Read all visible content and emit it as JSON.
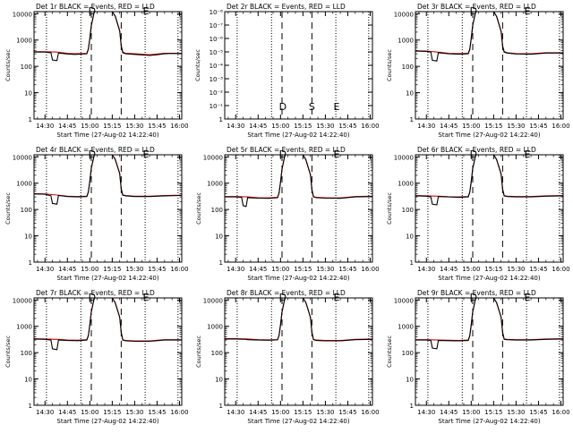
{
  "page_title": "",
  "common": {
    "xlabel": "Start Time (27-Aug-02 14:22:40)",
    "ylabel": "Counts/sec",
    "x_ticks": [
      "14:30",
      "14:45",
      "15:00",
      "15:15",
      "15:30",
      "15:45",
      "16:00"
    ],
    "x_tick_minutes": [
      30,
      45,
      60,
      75,
      90,
      105,
      120
    ],
    "x_range_minutes_after_14h": [
      22.67,
      121.5
    ],
    "y_scale": "log",
    "y_range": [
      1,
      12000
    ],
    "y_ticks": [
      1,
      10,
      100,
      1000,
      10000
    ],
    "y_tick_labels": [
      "1",
      "10",
      "100",
      "1000",
      "10000"
    ],
    "dotted_lines_minutes": [
      31,
      54,
      97,
      119
    ],
    "dashed_lines_minutes": [
      61,
      81
    ],
    "event_markers": [
      {
        "label": "D",
        "minute": 61.5
      },
      {
        "label": "S",
        "minute": 81
      },
      {
        "label": "E",
        "minute": 97.5
      }
    ],
    "colors": {
      "events": "#000000",
      "lld": "#dd0000",
      "axis": "#000000"
    }
  },
  "chart_data": [
    {
      "type": "line",
      "title": "Det 1r BLACK = Events, RED = LLD",
      "has_data": true,
      "xlabel": "Start Time (27-Aug-02 14:22:40)",
      "ylabel": "Counts/sec",
      "ylim": [
        1,
        12000
      ],
      "series": [
        {
          "name": "Events",
          "x": [
            22.7,
            30,
            34,
            35,
            38,
            39,
            45,
            50,
            58,
            59,
            60,
            61,
            63,
            75,
            77,
            80,
            81,
            82,
            84,
            90,
            100,
            105,
            110,
            115,
            121.5
          ],
          "y": [
            350,
            350,
            330,
            175,
            165,
            320,
            295,
            285,
            300,
            450,
            1100,
            3500,
            14000,
            14000,
            8000,
            2200,
            600,
            330,
            300,
            285,
            260,
            275,
            300,
            310,
            300
          ]
        },
        {
          "name": "LLD",
          "x": [
            22.7,
            30,
            38,
            45,
            50,
            58,
            59,
            60,
            61,
            63,
            75,
            77,
            80,
            81,
            82,
            84,
            90,
            100,
            110,
            121.5
          ],
          "y": [
            360,
            360,
            350,
            310,
            300,
            310,
            460,
            1150,
            3600,
            14000,
            14000,
            8200,
            2300,
            620,
            345,
            315,
            300,
            275,
            315,
            315
          ]
        }
      ]
    },
    {
      "type": "line",
      "title": "Det 2r BLACK = Events, RED = LLD",
      "has_data": false,
      "xlabel": "Start Time (27-Aug-02 14:22:40)",
      "ylabel": "Counts/sec",
      "y_scale": "log",
      "ylim": [
        1,
        1e-08
      ],
      "y_tick_labels": [
        "1",
        "10⁻¹",
        "10⁻²",
        "10⁻³",
        "10⁻⁴",
        "10⁻⁵",
        "10⁻⁶",
        "10⁻⁷",
        "10⁻⁸"
      ],
      "series": []
    },
    {
      "type": "line",
      "title": "Det 3r BLACK = Events, RED = LLD",
      "has_data": true,
      "xlabel": "Start Time (27-Aug-02 14:22:40)",
      "ylabel": "Counts/sec",
      "ylim": [
        1,
        12000
      ],
      "series": [
        {
          "name": "Events",
          "x": [
            22.7,
            30,
            33,
            34,
            37,
            38,
            45,
            52,
            58,
            59,
            60,
            61,
            63,
            75,
            77,
            80,
            81,
            82,
            84,
            90,
            100,
            110,
            121.5
          ],
          "y": [
            380,
            370,
            350,
            170,
            160,
            330,
            300,
            290,
            300,
            430,
            1100,
            3600,
            14000,
            14000,
            7800,
            2100,
            580,
            350,
            320,
            295,
            290,
            320,
            320
          ]
        },
        {
          "name": "LLD",
          "x": [
            22.7,
            30,
            38,
            45,
            52,
            58,
            59,
            60,
            61,
            63,
            75,
            77,
            80,
            81,
            82,
            84,
            90,
            100,
            110,
            121.5
          ],
          "y": [
            390,
            380,
            345,
            310,
            305,
            315,
            450,
            1150,
            3700,
            14000,
            14000,
            8000,
            2200,
            610,
            365,
            330,
            305,
            300,
            330,
            330
          ]
        }
      ]
    },
    {
      "type": "line",
      "title": "Det 4r BLACK = Events, RED = LLD",
      "has_data": true,
      "xlabel": "Start Time (27-Aug-02 14:22:40)",
      "ylabel": "Counts/sec",
      "ylim": [
        1,
        12000
      ],
      "series": [
        {
          "name": "Events",
          "x": [
            22.7,
            30,
            34,
            35,
            38,
            39,
            45,
            52,
            58,
            59,
            60,
            61,
            63,
            75,
            77,
            80,
            81,
            82,
            84,
            90,
            100,
            110,
            121.5
          ],
          "y": [
            390,
            380,
            330,
            170,
            160,
            340,
            310,
            300,
            310,
            460,
            1150,
            3700,
            14000,
            14000,
            8000,
            2300,
            600,
            350,
            330,
            310,
            310,
            330,
            340
          ]
        },
        {
          "name": "LLD",
          "x": [
            22.7,
            30,
            38,
            45,
            52,
            58,
            59,
            60,
            61,
            63,
            75,
            77,
            80,
            81,
            82,
            84,
            90,
            100,
            110,
            121.5
          ],
          "y": [
            400,
            390,
            355,
            320,
            310,
            320,
            470,
            1180,
            3800,
            14000,
            14000,
            8200,
            2350,
            620,
            360,
            340,
            320,
            320,
            340,
            350
          ]
        }
      ]
    },
    {
      "type": "line",
      "title": "Det 5r BLACK = Events, RED = LLD",
      "has_data": true,
      "xlabel": "Start Time (27-Aug-02 14:22:40)",
      "ylabel": "Counts/sec",
      "ylim": [
        1,
        12000
      ],
      "series": [
        {
          "name": "Events",
          "x": [
            22.7,
            30,
            34,
            35,
            37,
            38,
            45,
            52,
            58,
            59,
            60,
            61,
            63,
            75,
            77,
            80,
            81,
            82,
            84,
            90,
            100,
            110,
            121.5
          ],
          "y": [
            300,
            300,
            290,
            140,
            130,
            280,
            270,
            265,
            280,
            420,
            1050,
            3400,
            14000,
            14000,
            7600,
            2100,
            560,
            300,
            280,
            270,
            265,
            300,
            310
          ]
        },
        {
          "name": "LLD",
          "x": [
            22.7,
            30,
            38,
            45,
            52,
            58,
            59,
            60,
            61,
            63,
            75,
            77,
            80,
            81,
            82,
            84,
            90,
            100,
            110,
            121.5
          ],
          "y": [
            310,
            310,
            300,
            280,
            275,
            290,
            430,
            1100,
            3500,
            14000,
            14000,
            7800,
            2150,
            580,
            310,
            290,
            280,
            275,
            310,
            320
          ]
        }
      ]
    },
    {
      "type": "line",
      "title": "Det 6r BLACK = Events, RED = LLD",
      "has_data": true,
      "xlabel": "Start Time (27-Aug-02 14:22:40)",
      "ylabel": "Counts/sec",
      "ylim": [
        1,
        12000
      ],
      "series": [
        {
          "name": "Events",
          "x": [
            22.7,
            30,
            33,
            34,
            37,
            38,
            45,
            52,
            58,
            59,
            60,
            61,
            63,
            75,
            77,
            80,
            81,
            82,
            84,
            90,
            100,
            110,
            121.5
          ],
          "y": [
            330,
            320,
            300,
            160,
            150,
            310,
            300,
            290,
            300,
            450,
            1100,
            3500,
            14000,
            14000,
            7800,
            2200,
            580,
            330,
            310,
            300,
            300,
            320,
            330
          ]
        },
        {
          "name": "LLD",
          "x": [
            22.7,
            30,
            38,
            45,
            52,
            58,
            59,
            60,
            61,
            63,
            75,
            77,
            80,
            81,
            82,
            84,
            90,
            100,
            110,
            121.5
          ],
          "y": [
            340,
            330,
            320,
            305,
            300,
            310,
            460,
            1150,
            3600,
            14000,
            14000,
            8000,
            2250,
            600,
            340,
            320,
            310,
            310,
            330,
            340
          ]
        }
      ]
    },
    {
      "type": "line",
      "title": "Det 7r BLACK = Events, RED = LLD",
      "has_data": true,
      "xlabel": "Start Time (27-Aug-02 14:22:40)",
      "ylabel": "Counts/sec",
      "ylim": [
        1,
        12000
      ],
      "series": [
        {
          "name": "Events",
          "x": [
            22.7,
            30,
            34,
            35,
            38,
            39,
            45,
            52,
            58,
            59,
            60,
            61,
            63,
            75,
            77,
            80,
            81,
            82,
            84,
            90,
            100,
            110,
            121.5
          ],
          "y": [
            330,
            320,
            300,
            140,
            130,
            300,
            290,
            285,
            300,
            440,
            1100,
            3500,
            14000,
            14000,
            7800,
            2200,
            580,
            300,
            280,
            270,
            270,
            300,
            300
          ]
        },
        {
          "name": "LLD",
          "x": [
            22.7,
            30,
            38,
            45,
            52,
            58,
            59,
            60,
            61,
            63,
            75,
            77,
            80,
            81,
            82,
            84,
            90,
            100,
            110,
            121.5
          ],
          "y": [
            340,
            330,
            320,
            300,
            295,
            310,
            450,
            1150,
            3600,
            14000,
            14000,
            8000,
            2250,
            600,
            310,
            290,
            280,
            280,
            310,
            310
          ]
        }
      ]
    },
    {
      "type": "line",
      "title": "Det 8r BLACK = Events, RED = LLD",
      "has_data": true,
      "xlabel": "Start Time (27-Aug-02 14:22:40)",
      "ylabel": "Counts/sec",
      "ylim": [
        1,
        12000
      ],
      "series": [
        {
          "name": "Events",
          "x": [
            22.7,
            30,
            37,
            38,
            45,
            52,
            58,
            59,
            60,
            61,
            63,
            75,
            77,
            80,
            81,
            82,
            84,
            90,
            100,
            110,
            121.5
          ],
          "y": [
            330,
            330,
            320,
            310,
            300,
            295,
            305,
            450,
            1100,
            3500,
            14000,
            14000,
            7800,
            2200,
            580,
            310,
            290,
            280,
            280,
            310,
            320
          ]
        },
        {
          "name": "LLD",
          "x": [
            22.7,
            30,
            38,
            45,
            52,
            58,
            59,
            60,
            61,
            63,
            75,
            77,
            80,
            81,
            82,
            84,
            90,
            100,
            110,
            121.5
          ],
          "y": [
            340,
            340,
            330,
            310,
            305,
            315,
            460,
            1150,
            3600,
            14000,
            14000,
            8000,
            2250,
            600,
            320,
            300,
            290,
            290,
            320,
            330
          ]
        }
      ]
    },
    {
      "type": "line",
      "title": "Det 9r BLACK = Events, RED = LLD",
      "has_data": true,
      "xlabel": "Start Time (27-Aug-02 14:22:40)",
      "ylabel": "Counts/sec",
      "ylim": [
        1,
        12000
      ],
      "series": [
        {
          "name": "Events",
          "x": [
            22.7,
            30,
            33,
            34,
            37,
            38,
            45,
            52,
            58,
            59,
            60,
            61,
            63,
            75,
            77,
            80,
            81,
            82,
            84,
            90,
            100,
            110,
            121.5
          ],
          "y": [
            300,
            300,
            290,
            150,
            140,
            290,
            285,
            280,
            290,
            430,
            1100,
            3500,
            14000,
            14000,
            7800,
            2200,
            580,
            320,
            310,
            300,
            300,
            320,
            330
          ]
        },
        {
          "name": "LLD",
          "x": [
            22.7,
            30,
            38,
            45,
            52,
            58,
            59,
            60,
            61,
            63,
            75,
            77,
            80,
            81,
            82,
            84,
            90,
            100,
            110,
            121.5
          ],
          "y": [
            310,
            310,
            300,
            295,
            290,
            300,
            440,
            1150,
            3600,
            14000,
            14000,
            8000,
            2250,
            600,
            330,
            320,
            310,
            310,
            330,
            340
          ]
        }
      ]
    }
  ]
}
